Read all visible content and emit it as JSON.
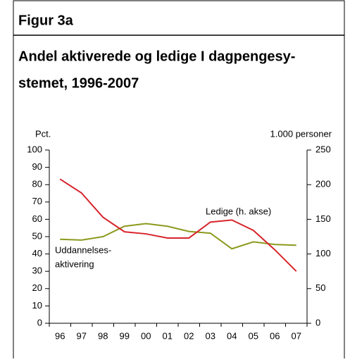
{
  "header": "Figur 3a",
  "chart_data": {
    "type": "line",
    "title_lines": [
      "Andel aktiverede og ledige I dagpengesy-",
      "stemet, 1996-2007"
    ],
    "ylabel": "Pct.",
    "y2label": "1.000 personer",
    "categories": [
      "96",
      "97",
      "98",
      "99",
      "00",
      "01",
      "02",
      "03",
      "04",
      "05",
      "06",
      "07"
    ],
    "ylim": [
      0,
      100
    ],
    "yticks": [
      0,
      10,
      20,
      30,
      40,
      50,
      60,
      70,
      80,
      90,
      100
    ],
    "y2lim": [
      0,
      250
    ],
    "y2ticks": [
      0,
      50,
      100,
      150,
      200,
      250
    ],
    "series": [
      {
        "color": "#8c9a1e",
        "values": [
          48.5,
          48,
          50,
          56,
          57.5,
          56,
          53,
          52,
          43,
          47,
          45.5,
          45
        ]
      },
      {
        "color": "#d7252c",
        "axis": "y2",
        "values": [
          208,
          188,
          153,
          132,
          129,
          123,
          123,
          146,
          149,
          134,
          106,
          75
        ]
      }
    ],
    "annotations": [
      {
        "lines": [
          "Uddannelses-",
          "aktivering"
        ]
      },
      {
        "lines": [
          "Ledige (h. akse)"
        ]
      }
    ]
  }
}
